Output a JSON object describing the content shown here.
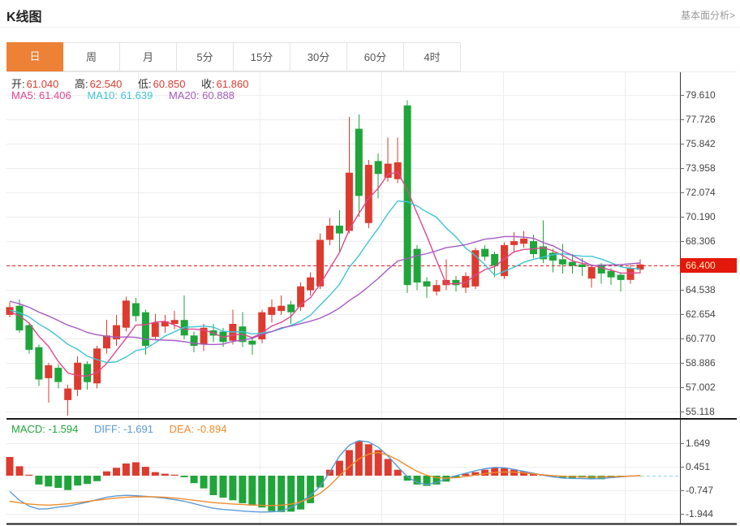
{
  "header": {
    "title": "K线图",
    "link": "基本面分析>"
  },
  "tabs": {
    "items": [
      "日",
      "周",
      "月",
      "5分",
      "15分",
      "30分",
      "60分",
      "4时"
    ],
    "active_index": 0
  },
  "info_bar": {
    "open_label": "开:",
    "open": "61.040",
    "high_label": "高:",
    "high": "62.540",
    "low_label": "低:",
    "low": "60.850",
    "close_label": "收:",
    "close": "61.860"
  },
  "ma_bar": {
    "ma5_label": "MA5:",
    "ma5": "61.406",
    "ma10_label": "MA10:",
    "ma10": "61.639",
    "ma20_label": "MA20:",
    "ma20": "60.888"
  },
  "macd_bar": {
    "macd_label": "MACD:",
    "macd": "-1.594",
    "diff_label": "DIFF:",
    "diff": "-1.691",
    "dea_label": "DEA:",
    "dea": "-0.894"
  },
  "price_axis": {
    "current": "66.400"
  },
  "colors": {
    "up": "#dd3b2f",
    "down": "#1fa53a",
    "ma5": "#e0488e",
    "ma10": "#40c4d6",
    "ma20": "#a55bc1",
    "diff_blue": "#5b9bd5",
    "dea_orange": "#f08c2e",
    "macd_green": "#1fa53a",
    "value_red": "#dd3b2f",
    "label_dark": "#333333",
    "current_line": "#e02222",
    "tag_bg": "#e2180b",
    "tag_text": "#ffedbe",
    "accent": "#ed8136",
    "axis_text": "#444444",
    "grid": "#ededed",
    "axis_line": "#3a3a3a",
    "separator": "#1b1b1b",
    "zero_dash": "#8ed0e8"
  },
  "chart_data": {
    "type": "candlestick",
    "title": "K线图",
    "price_axis_ticks": [
      79.61,
      77.726,
      75.842,
      73.958,
      72.074,
      70.19,
      68.306,
      64.538,
      62.654,
      60.77,
      58.886,
      57.002,
      55.118
    ],
    "current_price": 66.4,
    "candles_ohlc": [
      [
        62.6,
        63.6,
        62.4,
        63.2
      ],
      [
        63.3,
        63.8,
        61.2,
        61.4
      ],
      [
        61.8,
        62.0,
        59.6,
        59.9
      ],
      [
        60.1,
        60.3,
        57.1,
        57.6
      ],
      [
        57.7,
        58.9,
        55.8,
        58.7
      ],
      [
        58.5,
        58.8,
        56.9,
        57.4
      ],
      [
        56.0,
        57.2,
        54.8,
        56.9
      ],
      [
        56.8,
        59.4,
        56.3,
        58.9
      ],
      [
        58.8,
        59.0,
        56.8,
        57.4
      ],
      [
        57.3,
        60.2,
        56.9,
        60.0
      ],
      [
        60.0,
        62.2,
        59.6,
        61.0
      ],
      [
        60.7,
        62.6,
        60.2,
        61.8
      ],
      [
        61.6,
        64.0,
        61.3,
        63.7
      ],
      [
        63.5,
        63.9,
        62.1,
        62.5
      ],
      [
        62.8,
        63.0,
        59.5,
        60.2
      ],
      [
        60.9,
        62.7,
        60.6,
        62.0
      ],
      [
        61.7,
        62.6,
        61.2,
        62.1
      ],
      [
        61.9,
        62.9,
        61.5,
        62.2
      ],
      [
        62.2,
        64.1,
        60.7,
        61.0
      ],
      [
        61.0,
        61.3,
        59.7,
        60.2
      ],
      [
        60.3,
        61.9,
        59.8,
        61.6
      ],
      [
        61.4,
        61.9,
        60.5,
        61.0
      ],
      [
        61.3,
        61.6,
        60.1,
        60.5
      ],
      [
        60.6,
        63.0,
        60.3,
        61.9
      ],
      [
        61.7,
        62.8,
        60.1,
        60.5
      ],
      [
        60.6,
        60.9,
        59.5,
        60.3
      ],
      [
        60.7,
        63.0,
        60.4,
        62.8
      ],
      [
        62.6,
        63.8,
        62.0,
        63.2
      ],
      [
        62.9,
        64.1,
        62.6,
        63.3
      ],
      [
        63.4,
        63.7,
        61.9,
        62.8
      ],
      [
        63.2,
        65.1,
        62.9,
        64.8
      ],
      [
        64.5,
        65.9,
        64.1,
        65.5
      ],
      [
        64.8,
        68.9,
        64.6,
        68.4
      ],
      [
        68.4,
        70.1,
        68.0,
        69.5
      ],
      [
        69.5,
        70.7,
        67.5,
        68.9
      ],
      [
        69.1,
        77.9,
        68.9,
        73.6
      ],
      [
        77.0,
        78.1,
        70.2,
        71.8
      ],
      [
        69.7,
        74.6,
        69.3,
        74.2
      ],
      [
        74.5,
        75.1,
        71.6,
        73.5
      ],
      [
        73.2,
        76.3,
        72.9,
        74.3
      ],
      [
        73.1,
        76.3,
        72.8,
        74.4
      ],
      [
        78.8,
        79.2,
        64.3,
        64.9
      ],
      [
        67.7,
        68.0,
        64.5,
        65.1
      ],
      [
        65.2,
        65.5,
        63.9,
        64.8
      ],
      [
        64.4,
        65.3,
        64.1,
        64.9
      ],
      [
        64.9,
        66.9,
        64.5,
        65.3
      ],
      [
        65.3,
        65.6,
        64.4,
        64.9
      ],
      [
        64.7,
        65.9,
        64.3,
        65.6
      ],
      [
        64.8,
        67.8,
        64.6,
        67.6
      ],
      [
        67.7,
        68.0,
        66.8,
        67.1
      ],
      [
        67.3,
        67.5,
        65.5,
        66.4
      ],
      [
        65.6,
        68.2,
        65.4,
        68.0
      ],
      [
        68.0,
        69.0,
        67.4,
        68.3
      ],
      [
        68.1,
        69.1,
        67.8,
        68.5
      ],
      [
        68.3,
        68.8,
        67.0,
        67.3
      ],
      [
        67.9,
        69.9,
        66.6,
        66.9
      ],
      [
        67.4,
        67.7,
        65.9,
        66.8
      ],
      [
        66.9,
        68.1,
        65.8,
        66.5
      ],
      [
        66.7,
        67.3,
        65.8,
        66.4
      ],
      [
        66.5,
        67.0,
        65.6,
        66.3
      ],
      [
        65.4,
        66.5,
        64.7,
        66.3
      ],
      [
        66.5,
        66.6,
        65.0,
        65.8
      ],
      [
        66.0,
        66.2,
        64.9,
        65.5
      ],
      [
        65.7,
        65.9,
        64.4,
        65.3
      ],
      [
        65.3,
        66.5,
        65.0,
        66.2
      ],
      [
        66.1,
        66.9,
        65.8,
        66.5
      ]
    ],
    "ma_periods": [
      5,
      10,
      20
    ],
    "ma_seed_closes": [
      65.6,
      65.3,
      65.0,
      64.7,
      64.4,
      64.1,
      63.9,
      63.7,
      63.5,
      63.4,
      63.3,
      63.2,
      63.1,
      63.0,
      62.9,
      62.8,
      62.8,
      62.7,
      62.6
    ],
    "macd": {
      "ticks": [
        1.649,
        0.451,
        -0.747,
        -1.944
      ],
      "histogram": [
        0.95,
        0.48,
        0.05,
        -0.45,
        -0.55,
        -0.62,
        -0.73,
        -0.5,
        -0.42,
        -0.28,
        0.22,
        0.4,
        0.62,
        0.68,
        0.45,
        0.18,
        0.1,
        0.05,
        -0.08,
        -0.38,
        -0.65,
        -0.99,
        -1.12,
        -1.25,
        -1.4,
        -1.52,
        -1.62,
        -1.8,
        -1.85,
        -1.83,
        -1.72,
        -1.4,
        -0.6,
        0.3,
        0.76,
        1.3,
        1.75,
        1.6,
        1.3,
        0.85,
        0.3,
        -0.25,
        -0.45,
        -0.52,
        -0.45,
        -0.3,
        -0.12,
        0.1,
        0.18,
        0.3,
        0.4,
        0.38,
        0.3,
        0.22,
        0.12,
        0.05,
        -0.05,
        -0.12,
        -0.15,
        -0.1,
        -0.15,
        -0.18,
        -0.12,
        -0.08,
        -0.04,
        -0.02
      ],
      "diff": [
        -0.8,
        -1.25,
        -1.55,
        -1.7,
        -1.68,
        -1.6,
        -1.55,
        -1.45,
        -1.35,
        -1.22,
        -1.1,
        -1.03,
        -1.0,
        -1.02,
        -1.05,
        -1.1,
        -1.15,
        -1.22,
        -1.3,
        -1.42,
        -1.55,
        -1.66,
        -1.72,
        -1.75,
        -1.8,
        -1.83,
        -1.85,
        -1.84,
        -1.8,
        -1.62,
        -1.35,
        -1.0,
        -0.55,
        0.2,
        1.0,
        1.55,
        1.78,
        1.72,
        1.45,
        1.0,
        0.45,
        -0.05,
        -0.35,
        -0.45,
        -0.35,
        -0.15,
        0.0,
        0.12,
        0.25,
        0.35,
        0.42,
        0.4,
        0.32,
        0.22,
        0.12,
        0.02,
        -0.06,
        -0.12,
        -0.14,
        -0.15,
        -0.16,
        -0.14,
        -0.1,
        -0.06,
        -0.02,
        0.0
      ],
      "dea": [
        -1.3,
        -1.38,
        -1.44,
        -1.48,
        -1.5,
        -1.47,
        -1.43,
        -1.37,
        -1.31,
        -1.25,
        -1.19,
        -1.14,
        -1.1,
        -1.08,
        -1.07,
        -1.08,
        -1.1,
        -1.14,
        -1.19,
        -1.25,
        -1.31,
        -1.37,
        -1.41,
        -1.44,
        -1.47,
        -1.49,
        -1.51,
        -1.52,
        -1.5,
        -1.45,
        -1.33,
        -1.15,
        -0.9,
        -0.5,
        0.0,
        0.45,
        0.85,
        1.1,
        1.18,
        1.05,
        0.8,
        0.5,
        0.22,
        0.02,
        -0.1,
        -0.13,
        -0.1,
        -0.04,
        0.03,
        0.1,
        0.16,
        0.19,
        0.18,
        0.14,
        0.09,
        0.04,
        0.0,
        -0.03,
        -0.05,
        -0.06,
        -0.07,
        -0.06,
        -0.05,
        -0.04,
        -0.02,
        0.0
      ]
    }
  }
}
